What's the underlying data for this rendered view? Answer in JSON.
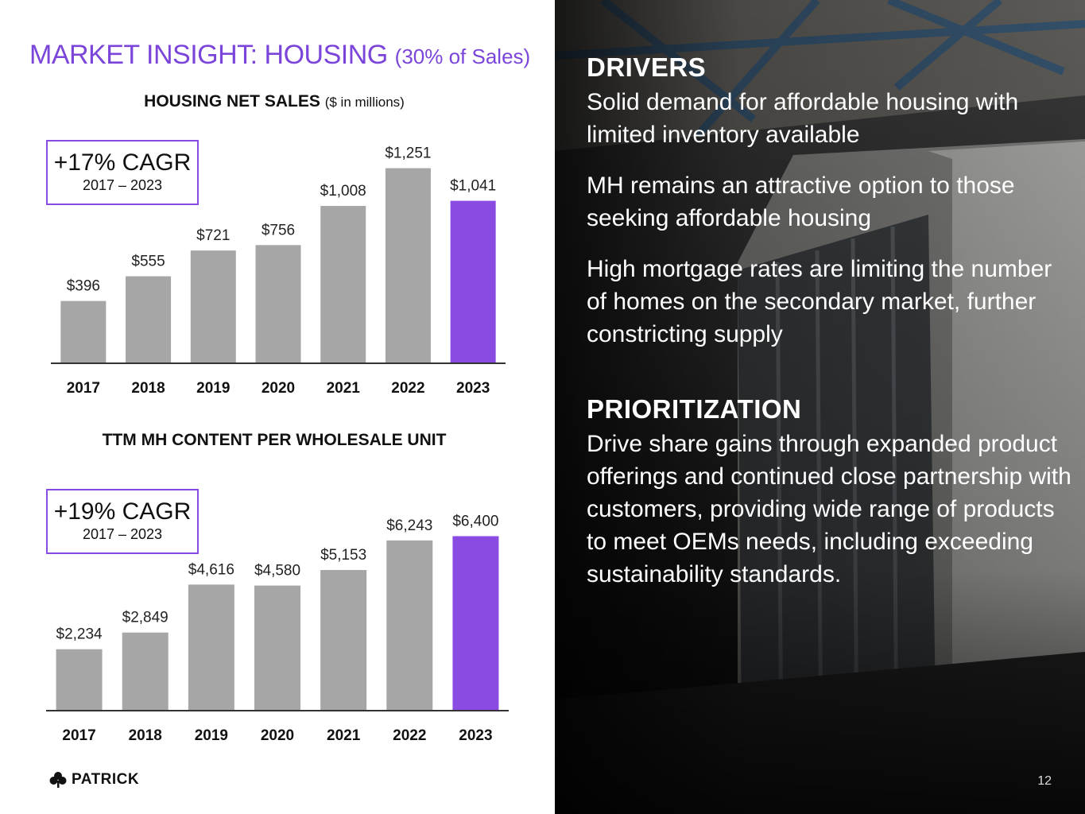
{
  "slide": {
    "title": "MARKET INSIGHT: HOUSING",
    "title_suffix": "(30% of Sales)",
    "page_number": "12"
  },
  "logo": {
    "text": "PATRICK",
    "icon": "clover-icon"
  },
  "colors": {
    "accent": "#8a4be3",
    "bar_gray": "#a6a6a6",
    "title_purple": "#7b45d9"
  },
  "charts": {
    "net_sales": {
      "title": "HOUSING NET SALES",
      "unit": "($ in millions)",
      "cagr": "+17% CAGR",
      "cagr_period": "2017 – 2023"
    },
    "content": {
      "title": "TTM MH CONTENT PER WHOLESALE UNIT",
      "cagr": "+19% CAGR",
      "cagr_period": "2017 – 2023"
    }
  },
  "chart_data": [
    {
      "type": "bar",
      "title": "HOUSING NET SALES ($ in millions)",
      "categories": [
        "2017",
        "2018",
        "2019",
        "2020",
        "2021",
        "2022",
        "2023"
      ],
      "values": [
        396,
        555,
        721,
        756,
        1008,
        1251,
        1041
      ],
      "labels": [
        "$396",
        "$555",
        "$721",
        "$756",
        "$1,008",
        "$1,251",
        "$1,041"
      ],
      "highlight_index": 6,
      "xlabel": "",
      "ylabel": "",
      "ylim": [
        0,
        1300
      ]
    },
    {
      "type": "bar",
      "title": "TTM MH CONTENT PER WHOLESALE UNIT",
      "categories": [
        "2017",
        "2018",
        "2019",
        "2020",
        "2021",
        "2022",
        "2023"
      ],
      "values": [
        2234,
        2849,
        4616,
        4580,
        5153,
        6243,
        6400
      ],
      "labels": [
        "$2,234",
        "$2,849",
        "$4,616",
        "$4,580",
        "$5,153",
        "$6,243",
        "$6,400"
      ],
      "highlight_index": 6,
      "xlabel": "",
      "ylabel": "",
      "ylim": [
        0,
        7000
      ]
    }
  ],
  "drivers": {
    "heading": "DRIVERS",
    "points": [
      "Solid demand for affordable housing with limited inventory available",
      "MH remains an attractive option to those seeking affordable housing",
      "High mortgage rates are limiting the number of homes on the secondary market, further constricting supply"
    ]
  },
  "prioritization": {
    "heading": "PRIORITIZATION",
    "text": "Drive share gains through expanded product offerings and continued close partnership with customers, providing wide range of products to meet OEMs needs, including exceeding sustainability standards."
  }
}
